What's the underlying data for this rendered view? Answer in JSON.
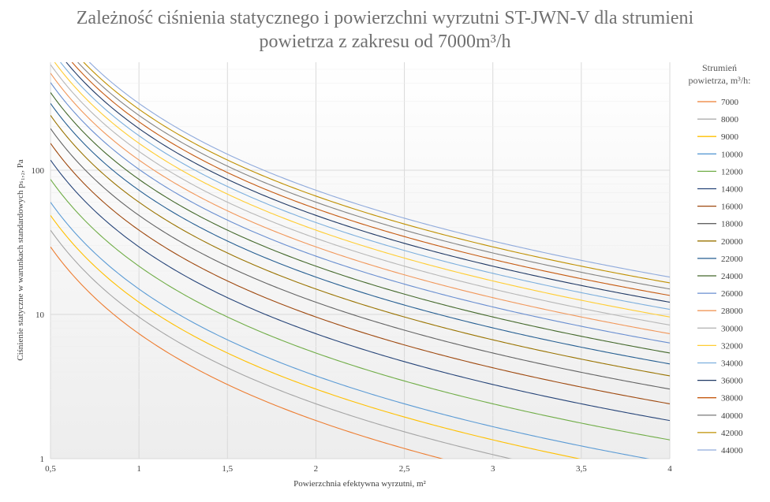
{
  "chart_data": {
    "type": "line",
    "title_line1": "Zależność ciśnienia statycznego i powierzchni wyrzutni ST-JWN-V dla strumieni",
    "title_line2": "powietrza z zakresu od 7000m³/h",
    "xlabel": "Powierzchnia efektywna wyrzutni, m²",
    "ylabel": "Ciśnienie statyczne w warunkach standardowych pₛ₁,₂, Pa",
    "legend_title_line1": "Strumień",
    "legend_title_line2": "powietrza, m³/h:",
    "legend_position": "right",
    "x_ticks": [
      "0,5",
      "1",
      "1,5",
      "2",
      "2,5",
      "3",
      "3,5",
      "4"
    ],
    "x_tick_values": [
      0.5,
      1,
      1.5,
      2,
      2.5,
      3,
      3.5,
      4
    ],
    "y_ticks": [
      "1",
      "10",
      "100"
    ],
    "y_tick_values": [
      1,
      10,
      100
    ],
    "xlim": [
      0.5,
      4
    ],
    "ylim": [
      1,
      560
    ],
    "y_scale": "log",
    "grid": true,
    "curve_model": "p = k * Q^2 / A^2",
    "k": 1.5e-07,
    "series": [
      {
        "name": "7000",
        "flow": 7000,
        "color": "#ED7D31"
      },
      {
        "name": "8000",
        "flow": 8000,
        "color": "#A5A5A5"
      },
      {
        "name": "9000",
        "flow": 9000,
        "color": "#FFC000"
      },
      {
        "name": "10000",
        "flow": 10000,
        "color": "#5B9BD5"
      },
      {
        "name": "12000",
        "flow": 12000,
        "color": "#70AD47"
      },
      {
        "name": "14000",
        "flow": 14000,
        "color": "#264478"
      },
      {
        "name": "16000",
        "flow": 16000,
        "color": "#9E480E"
      },
      {
        "name": "18000",
        "flow": 18000,
        "color": "#636363"
      },
      {
        "name": "20000",
        "flow": 20000,
        "color": "#997300"
      },
      {
        "name": "22000",
        "flow": 22000,
        "color": "#255E91"
      },
      {
        "name": "24000",
        "flow": 24000,
        "color": "#43682B"
      },
      {
        "name": "26000",
        "flow": 26000,
        "color": "#698ED0"
      },
      {
        "name": "28000",
        "flow": 28000,
        "color": "#F1975A"
      },
      {
        "name": "30000",
        "flow": 30000,
        "color": "#B7B7B7"
      },
      {
        "name": "32000",
        "flow": 32000,
        "color": "#FFCD33"
      },
      {
        "name": "34000",
        "flow": 34000,
        "color": "#7CAFDD"
      },
      {
        "name": "36000",
        "flow": 36000,
        "color": "#1F3864"
      },
      {
        "name": "38000",
        "flow": 38000,
        "color": "#C55A11"
      },
      {
        "name": "40000",
        "flow": 40000,
        "color": "#848484"
      },
      {
        "name": "42000",
        "flow": 42000,
        "color": "#BF9000"
      },
      {
        "name": "44000",
        "flow": 44000,
        "color": "#8FAADC"
      }
    ]
  }
}
